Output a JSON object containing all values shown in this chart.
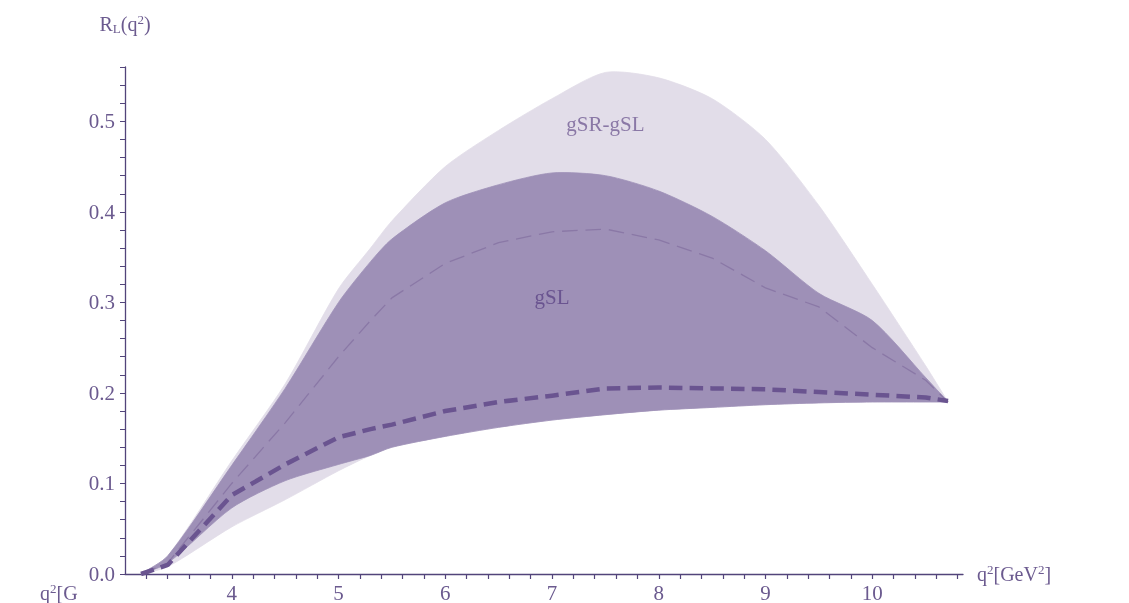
{
  "chart_data": {
    "type": "line",
    "xlabel": "q$^{2}$[GeV$^{2}$]",
    "ylabel": "R$_{L}$(q$^{2}$)",
    "annotations": [
      "q$^{2}$[G"
    ],
    "x": [
      3.15,
      3.4,
      4,
      4.5,
      5,
      5.3,
      5.5,
      6,
      6.5,
      7,
      7.5,
      8,
      8.5,
      9,
      9.5,
      10,
      10.5,
      10.71
    ],
    "series": [
      {
        "name": "gSR-gSL",
        "color": "#8a78a6",
        "line_style": "dashed",
        "values": [
          0,
          0.012,
          0.1,
          0.167,
          0.24,
          0.28,
          0.305,
          0.343,
          0.366,
          0.378,
          0.381,
          0.369,
          0.349,
          0.316,
          0.295,
          0.25,
          0.214,
          0.19
        ],
        "lower": [
          0,
          0.008,
          0.052,
          0.082,
          0.114,
          0.131,
          0.14,
          0.152,
          0.162,
          0.17,
          0.176,
          0.181,
          0.184,
          0.187,
          0.189,
          0.19,
          0.19,
          0.19
        ],
        "upper": [
          0,
          0.02,
          0.125,
          0.21,
          0.315,
          0.36,
          0.39,
          0.45,
          0.49,
          0.525,
          0.554,
          0.548,
          0.525,
          0.48,
          0.407,
          0.32,
          0.23,
          0.19
        ]
      },
      {
        "name": "gSL",
        "color": "#6a5490",
        "line_style": "dashed",
        "values": [
          0,
          0.01,
          0.087,
          0.121,
          0.151,
          0.16,
          0.165,
          0.18,
          0.19,
          0.197,
          0.205,
          0.206,
          0.205,
          0.204,
          0.201,
          0.198,
          0.195,
          0.191
        ],
        "lower": [
          0,
          0.012,
          0.073,
          0.103,
          0.121,
          0.131,
          0.14,
          0.152,
          0.162,
          0.17,
          0.176,
          0.181,
          0.184,
          0.187,
          0.189,
          0.19,
          0.19,
          0.19
        ],
        "upper": [
          0,
          0.02,
          0.12,
          0.205,
          0.3,
          0.345,
          0.37,
          0.41,
          0.43,
          0.443,
          0.44,
          0.423,
          0.395,
          0.357,
          0.31,
          0.28,
          0.217,
          0.19
        ]
      }
    ],
    "xlim": [
      3.0,
      10.85
    ],
    "xticks": [
      {
        "value": 3.2,
        "label": null
      },
      {
        "value": 3.4,
        "label": null
      },
      {
        "value": 3.6,
        "label": null
      },
      {
        "value": 3.8,
        "label": null
      },
      4,
      {
        "value": 4.2,
        "label": null
      },
      {
        "value": 4.4,
        "label": null
      },
      {
        "value": 4.6,
        "label": null
      },
      {
        "value": 4.8,
        "label": null
      },
      5,
      {
        "value": 5.2,
        "label": null
      },
      {
        "value": 5.4,
        "label": null
      },
      {
        "value": 5.6,
        "label": null
      },
      {
        "value": 5.8,
        "label": null
      },
      6,
      {
        "value": 6.2,
        "label": null
      },
      {
        "value": 6.4,
        "label": null
      },
      {
        "value": 6.6,
        "label": null
      },
      {
        "value": 6.8,
        "label": null
      },
      7,
      {
        "value": 7.2,
        "label": null
      },
      {
        "value": 7.4,
        "label": null
      },
      {
        "value": 7.6,
        "label": null
      },
      {
        "value": 7.8,
        "label": null
      },
      8,
      {
        "value": 8.2,
        "label": null
      },
      {
        "value": 8.4,
        "label": null
      },
      {
        "value": 8.6,
        "label": null
      },
      {
        "value": 8.8,
        "label": null
      },
      9,
      {
        "value": 9.2,
        "label": null
      },
      {
        "value": 9.4,
        "label": null
      },
      {
        "value": 9.6,
        "label": null
      },
      {
        "value": 9.8,
        "label": null
      },
      10,
      {
        "value": 10.2,
        "label": null
      },
      {
        "value": 10.4,
        "label": null
      },
      {
        "value": 10.6,
        "label": null
      },
      {
        "value": 10.8,
        "label": null
      }
    ],
    "ylim": [
      0,
      0.56
    ],
    "yticks": [
      {
        "value": 0,
        "label": "0.0"
      },
      {
        "value": 0.02,
        "label": null
      },
      {
        "value": 0.04,
        "label": null
      },
      {
        "value": 0.06,
        "label": null
      },
      {
        "value": 0.08,
        "label": null
      },
      0.1,
      {
        "value": 0.12,
        "label": null
      },
      {
        "value": 0.14,
        "label": null
      },
      {
        "value": 0.16,
        "label": null
      },
      {
        "value": 0.18,
        "label": null
      },
      0.2,
      {
        "value": 0.22,
        "label": null
      },
      {
        "value": 0.24,
        "label": null
      },
      {
        "value": 0.26,
        "label": null
      },
      {
        "value": 0.28,
        "label": null
      },
      0.3,
      {
        "value": 0.32,
        "label": null
      },
      {
        "value": 0.34,
        "label": null
      },
      {
        "value": 0.36,
        "label": null
      },
      {
        "value": 0.38,
        "label": null
      },
      0.4,
      {
        "value": 0.42,
        "label": null
      },
      {
        "value": 0.44,
        "label": null
      },
      {
        "value": 0.46,
        "label": null
      },
      {
        "value": 0.48,
        "label": null
      },
      0.5,
      {
        "value": 0.52,
        "label": null
      },
      {
        "value": 0.54,
        "label": null
      },
      {
        "value": 0.56,
        "label": null
      }
    ],
    "grid": false,
    "legend": false
  }
}
